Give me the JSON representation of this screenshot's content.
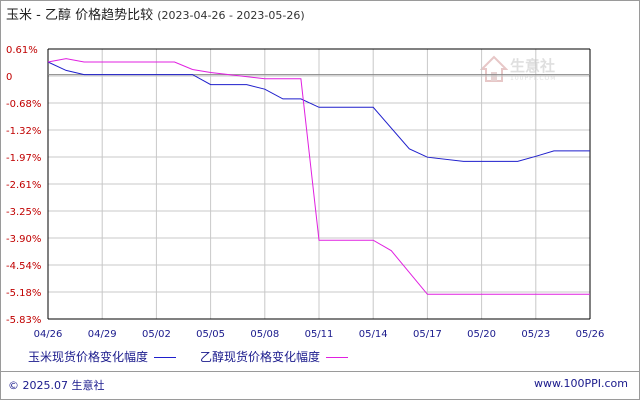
{
  "title": {
    "main": "玉米 - 乙醇 价格趋势比较",
    "range": "(2023-04-26 - 2023-05-26)"
  },
  "colors": {
    "series1": "#1f1fcc",
    "series2": "#e020e0",
    "grid": "#c8c8c8",
    "axis": "#000000",
    "tick_text": "#c00000",
    "date_text": "#1a1a8c"
  },
  "watermark": {
    "text": "生意社",
    "sub": "100PPI.COM",
    "icon": "house-icon"
  },
  "legend": [
    {
      "label": "玉米现货价格变化幅度"
    },
    {
      "label": "乙醇现货价格变化幅度"
    }
  ],
  "footer": {
    "left": "© 2025.07 生意社",
    "right": "www.100PPI.com"
  },
  "chart_data": {
    "type": "line",
    "title": "玉米 - 乙醇 价格趋势比较",
    "subtitle": "(2023-04-26 - 2023-05-26)",
    "x_ticks": [
      "04/26",
      "04/29",
      "05/02",
      "05/05",
      "05/08",
      "05/11",
      "05/14",
      "05/17",
      "05/20",
      "05/23",
      "05/26"
    ],
    "y_ticks": [
      "0.61%",
      "0",
      "-0.68%",
      "-1.32%",
      "-1.97%",
      "-2.61%",
      "-3.25%",
      "-3.90%",
      "-4.54%",
      "-5.18%",
      "-5.83%"
    ],
    "ylim": [
      -5.83,
      0.61
    ],
    "xlim": [
      "2023-04-26",
      "2023-05-26"
    ],
    "grid": true,
    "legend_position": "bottom",
    "series": [
      {
        "name": "玉米现货价格变化幅度",
        "points": [
          [
            "2023-04-26",
            0.3
          ],
          [
            "2023-04-27",
            0.1
          ],
          [
            "2023-04-28",
            0.0
          ],
          [
            "2023-05-04",
            0.0
          ],
          [
            "2023-05-05",
            -0.24
          ],
          [
            "2023-05-07",
            -0.24
          ],
          [
            "2023-05-08",
            -0.35
          ],
          [
            "2023-05-09",
            -0.58
          ],
          [
            "2023-05-10",
            -0.58
          ],
          [
            "2023-05-11",
            -0.78
          ],
          [
            "2023-05-14",
            -0.78
          ],
          [
            "2023-05-16",
            -1.77
          ],
          [
            "2023-05-17",
            -1.97
          ],
          [
            "2023-05-19",
            -2.07
          ],
          [
            "2023-05-22",
            -2.07
          ],
          [
            "2023-05-23",
            -1.95
          ],
          [
            "2023-05-24",
            -1.82
          ],
          [
            "2023-05-26",
            -1.82
          ]
        ]
      },
      {
        "name": "乙醇现货价格变化幅度",
        "points": [
          [
            "2023-04-26",
            0.3
          ],
          [
            "2023-04-27",
            0.38
          ],
          [
            "2023-04-28",
            0.3
          ],
          [
            "2023-05-03",
            0.3
          ],
          [
            "2023-05-04",
            0.12
          ],
          [
            "2023-05-05",
            0.05
          ],
          [
            "2023-05-08",
            -0.1
          ],
          [
            "2023-05-09",
            -0.1
          ],
          [
            "2023-05-10",
            -0.1
          ],
          [
            "2023-05-11",
            -3.95
          ],
          [
            "2023-05-14",
            -3.95
          ],
          [
            "2023-05-15",
            -4.2
          ],
          [
            "2023-05-17",
            -5.24
          ],
          [
            "2023-05-26",
            -5.24
          ]
        ]
      }
    ]
  }
}
